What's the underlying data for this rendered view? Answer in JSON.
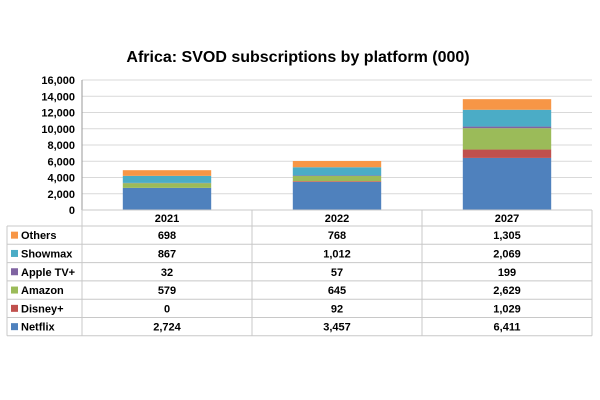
{
  "chart_data": {
    "type": "bar",
    "stacked": true,
    "title": "Africa: SVOD subscriptions by platform (000)",
    "categories": [
      "2021",
      "2022",
      "2027"
    ],
    "ylim": [
      0,
      16000
    ],
    "yticks": [
      "0",
      "2,000",
      "4,000",
      "6,000",
      "8,000",
      "10,000",
      "12,000",
      "14,000",
      "16,000"
    ],
    "grid": true,
    "legend": "table-below",
    "series": [
      {
        "name": "Netflix",
        "color": "#4f81bd",
        "values": [
          2724,
          3457,
          6411
        ],
        "labels": [
          "2,724",
          "3,457",
          "6,411"
        ]
      },
      {
        "name": "Disney+",
        "color": "#c0504d",
        "values": [
          0,
          92,
          1029
        ],
        "labels": [
          "0",
          "92",
          "1,029"
        ]
      },
      {
        "name": "Amazon",
        "color": "#9bbb59",
        "values": [
          579,
          645,
          2629
        ],
        "labels": [
          "579",
          "645",
          "2,629"
        ]
      },
      {
        "name": "Apple TV+",
        "color": "#8064a2",
        "values": [
          32,
          57,
          199
        ],
        "labels": [
          "32",
          "57",
          "199"
        ]
      },
      {
        "name": "Showmax",
        "color": "#4bacc6",
        "values": [
          867,
          1012,
          2069
        ],
        "labels": [
          "867",
          "1,012",
          "2,069"
        ]
      },
      {
        "name": "Others",
        "color": "#f79646",
        "values": [
          698,
          768,
          1305
        ],
        "labels": [
          "698",
          "768",
          "1,305"
        ]
      }
    ]
  }
}
